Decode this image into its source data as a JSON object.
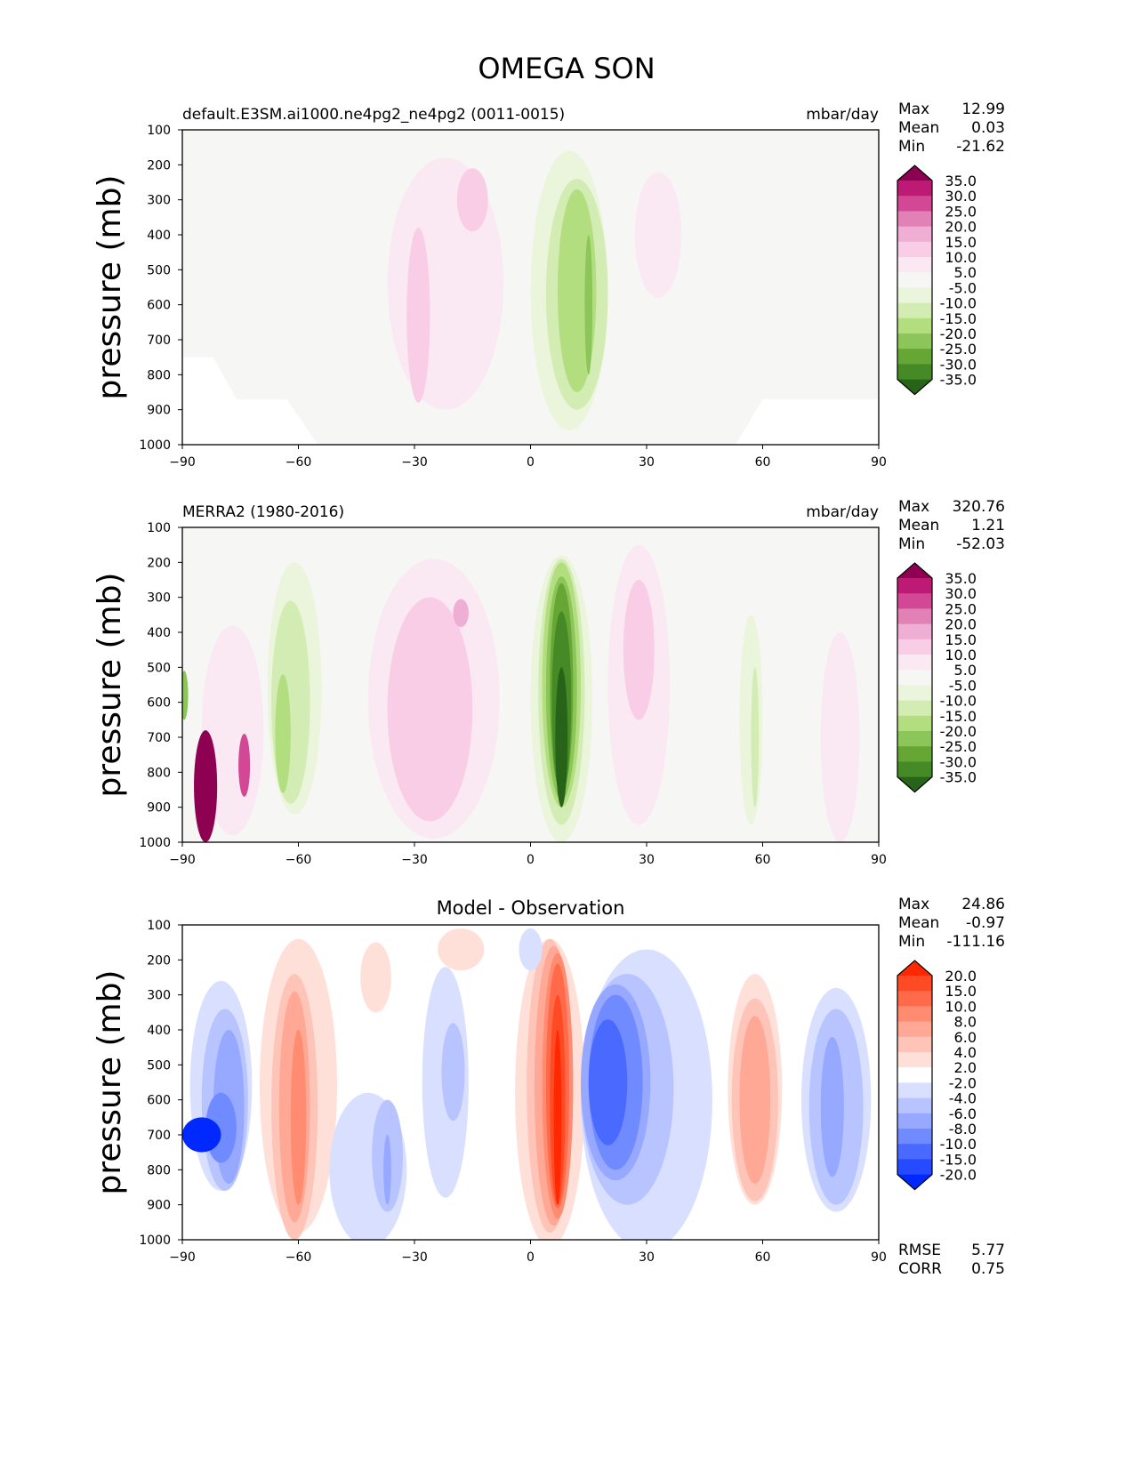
{
  "chart_data": {
    "type": "heatmap",
    "title": "OMEGA SON",
    "xlabel": "",
    "ylabel": "pressure (mb)",
    "xlim": [
      -90,
      90
    ],
    "ylim": [
      1000,
      100
    ],
    "xticks": [
      "−90",
      "−60",
      "−30",
      "0",
      "30",
      "60",
      "90"
    ],
    "xtick_values": [
      -90,
      -60,
      -30,
      0,
      30,
      60,
      90
    ],
    "yticks": [
      "100",
      "200",
      "300",
      "400",
      "500",
      "600",
      "700",
      "800",
      "900",
      "1000"
    ],
    "ytick_values": [
      100,
      200,
      300,
      400,
      500,
      600,
      700,
      800,
      900,
      1000
    ],
    "panels": [
      {
        "title_left": "default.E3SM.ai1000.ne4pg2_ne4pg2 (0011-0015)",
        "title_center": "",
        "units": "mbar/day",
        "stats": [
          {
            "label": "Max",
            "value": "12.99"
          },
          {
            "label": "Mean",
            "value": "0.03"
          },
          {
            "label": "Min",
            "value": "-21.62"
          }
        ],
        "colorbar_labels": [
          "35.0",
          "30.0",
          "25.0",
          "20.0",
          "15.0",
          "10.0",
          "5.0",
          "-5.0",
          "-10.0",
          "-15.0",
          "-20.0",
          "-25.0",
          "-30.0",
          "-35.0"
        ],
        "colorbar_colors": [
          "#8e0152",
          "#bc1a75",
          "#d24894",
          "#e181b5",
          "#efaed3",
          "#f8cde5",
          "#fae8f2",
          "#f6f6f5",
          "#eaf5dc",
          "#d3ecb4",
          "#b3de7f",
          "#8cc55a",
          "#66a634",
          "#458a26",
          "#276419"
        ],
        "background_level": 7,
        "regions": [
          [
            -22,
            15,
            540,
            360,
            6
          ],
          [
            -29,
            3,
            630,
            250,
            5
          ],
          [
            -15,
            4,
            300,
            90,
            5
          ],
          [
            10,
            10,
            560,
            400,
            8
          ],
          [
            12,
            8,
            570,
            330,
            9
          ],
          [
            12,
            5,
            560,
            290,
            10
          ],
          [
            15,
            1,
            600,
            200,
            11
          ],
          [
            33,
            6,
            400,
            180,
            6
          ]
        ],
        "missing_mask": [
          [
            [
              -90,
              750
            ],
            [
              -82,
              750
            ],
            [
              -76,
              870
            ],
            [
              -63,
              870
            ],
            [
              -55,
              1000
            ],
            [
              -90,
              1000
            ]
          ],
          [
            [
              60,
              870
            ],
            [
              90,
              870
            ],
            [
              90,
              1000
            ],
            [
              53,
              1000
            ]
          ]
        ]
      },
      {
        "title_left": "MERRA2 (1980-2016)",
        "title_center": "",
        "units": "mbar/day",
        "stats": [
          {
            "label": "Max",
            "value": "320.76"
          },
          {
            "label": "Mean",
            "value": "1.21"
          },
          {
            "label": "Min",
            "value": "-52.03"
          }
        ],
        "colorbar_labels": [
          "35.0",
          "30.0",
          "25.0",
          "20.0",
          "15.0",
          "10.0",
          "5.0",
          "-5.0",
          "-10.0",
          "-15.0",
          "-20.0",
          "-25.0",
          "-30.0",
          "-35.0"
        ],
        "colorbar_colors": [
          "#8e0152",
          "#bc1a75",
          "#d24894",
          "#e181b5",
          "#efaed3",
          "#f8cde5",
          "#fae8f2",
          "#f6f6f5",
          "#eaf5dc",
          "#d3ecb4",
          "#b3de7f",
          "#8cc55a",
          "#66a634",
          "#458a26",
          "#276419"
        ],
        "background_level": 7,
        "regions": [
          [
            -25,
            17,
            590,
            400,
            6
          ],
          [
            -26,
            11,
            620,
            320,
            5
          ],
          [
            -18,
            2,
            345,
            40,
            4
          ],
          [
            -61,
            7,
            560,
            360,
            8
          ],
          [
            -62,
            5,
            600,
            290,
            9
          ],
          [
            -64,
            2,
            690,
            170,
            10
          ],
          [
            8,
            8,
            590,
            410,
            8
          ],
          [
            8,
            6,
            570,
            380,
            9
          ],
          [
            8,
            5,
            550,
            350,
            10
          ],
          [
            8,
            4,
            560,
            320,
            11
          ],
          [
            8,
            3,
            560,
            300,
            12
          ],
          [
            8,
            2.5,
            600,
            260,
            13
          ],
          [
            8,
            1.6,
            700,
            200,
            14
          ],
          [
            28,
            8,
            550,
            400,
            6
          ],
          [
            28,
            4,
            450,
            200,
            5
          ],
          [
            57,
            3,
            650,
            300,
            8
          ],
          [
            58,
            1,
            700,
            200,
            9
          ],
          [
            -77,
            8,
            680,
            300,
            6
          ],
          [
            -84,
            3,
            840,
            160,
            0
          ],
          [
            -74,
            1.5,
            780,
            90,
            2
          ],
          [
            80,
            5,
            700,
            300,
            6
          ],
          [
            -89.5,
            1,
            580,
            70,
            11
          ]
        ],
        "missing_mask": []
      },
      {
        "title_left": "",
        "title_center": "Model - Observation",
        "units": "",
        "stats": [
          {
            "label": "Max",
            "value": "24.86"
          },
          {
            "label": "Mean",
            "value": "-0.97"
          },
          {
            "label": "Min",
            "value": "-111.16"
          }
        ],
        "colorbar_labels": [
          "20.0",
          "15.0",
          "10.0",
          "8.0",
          "6.0",
          "4.0",
          "2.0",
          "-2.0",
          "-4.0",
          "-6.0",
          "-8.0",
          "-10.0",
          "-15.0",
          "-20.0"
        ],
        "colorbar_colors": [
          "#ff2800",
          "#ff4a26",
          "#ff6a4a",
          "#ff8b70",
          "#ffa896",
          "#ffc4b8",
          "#ffe0d9",
          "#ffffff",
          "#d9e0ff",
          "#b8c4ff",
          "#96a8ff",
          "#708bff",
          "#4a6aff",
          "#264aff",
          "#0028ff"
        ],
        "background_level": 7,
        "regions": [
          [
            -60,
            10,
            560,
            420,
            6
          ],
          [
            -61,
            6,
            620,
            380,
            5
          ],
          [
            -61,
            4,
            620,
            330,
            4
          ],
          [
            -60,
            2,
            650,
            250,
            3
          ],
          [
            -80,
            8,
            560,
            300,
            8
          ],
          [
            -79,
            6,
            600,
            260,
            9
          ],
          [
            -78,
            4,
            620,
            220,
            10
          ],
          [
            -80,
            4,
            680,
            100,
            11
          ],
          [
            -85,
            5,
            700,
            50,
            14
          ],
          [
            -42,
            10,
            800,
            220,
            8
          ],
          [
            -37,
            4,
            760,
            160,
            9
          ],
          [
            -37,
            1,
            800,
            100,
            10
          ],
          [
            -22,
            6,
            550,
            330,
            8
          ],
          [
            -20,
            3,
            520,
            140,
            9
          ],
          [
            5,
            9,
            580,
            440,
            6
          ],
          [
            5,
            6,
            560,
            420,
            5
          ],
          [
            6,
            5,
            560,
            400,
            4
          ],
          [
            7,
            4,
            560,
            380,
            3
          ],
          [
            7,
            3,
            560,
            350,
            2
          ],
          [
            7,
            2,
            600,
            300,
            1
          ],
          [
            7,
            1,
            650,
            250,
            0
          ],
          [
            30,
            17,
            600,
            430,
            8
          ],
          [
            25,
            12,
            570,
            330,
            9
          ],
          [
            22,
            9,
            550,
            280,
            10
          ],
          [
            22,
            7,
            550,
            250,
            11
          ],
          [
            20,
            5,
            550,
            180,
            12
          ],
          [
            58,
            7,
            570,
            330,
            6
          ],
          [
            58,
            6,
            600,
            290,
            5
          ],
          [
            58,
            4,
            600,
            240,
            4
          ],
          [
            79,
            9,
            600,
            320,
            8
          ],
          [
            79,
            7,
            620,
            280,
            9
          ],
          [
            78,
            3,
            620,
            200,
            10
          ],
          [
            -40,
            4,
            250,
            100,
            6
          ],
          [
            -18,
            6,
            170,
            60,
            6
          ],
          [
            0,
            3,
            170,
            60,
            8
          ]
        ],
        "missing_mask": [],
        "metrics": [
          {
            "label": "RMSE",
            "value": "5.77"
          },
          {
            "label": "CORR",
            "value": "0.75"
          }
        ]
      }
    ]
  }
}
